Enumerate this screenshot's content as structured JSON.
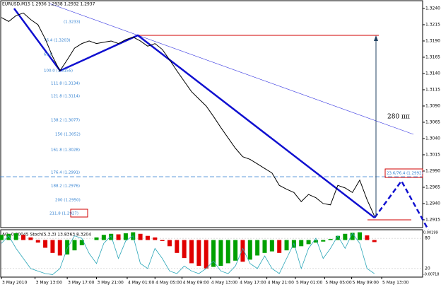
{
  "chart_data": [
    {
      "type": "line",
      "title": "EURUSD,M15  1.2936 1.2938 1.2932 1.2937",
      "color": "#000000",
      "xlim": [
        0,
        57.6
      ],
      "xticks": [
        {
          "value": 0,
          "label": "3 May 2010"
        },
        {
          "value": 4.6,
          "label": "3 May 13:00"
        },
        {
          "value": 9,
          "label": "3 May 17:00"
        },
        {
          "value": 13,
          "label": "3 May 21:00"
        },
        {
          "value": 17.2,
          "label": "4 May 01:00"
        },
        {
          "value": 21,
          "label": "4 May 05:00"
        },
        {
          "value": 24.7,
          "label": "4 May 09:00"
        },
        {
          "value": 28.6,
          "label": "4 May 13:00"
        },
        {
          "value": 32.5,
          "label": "4 May 17:00"
        },
        {
          "value": 36.3,
          "label": "4 May 21:00"
        },
        {
          "value": 40.2,
          "label": "5 May 01:00"
        },
        {
          "value": 44.2,
          "label": "5 May 05:00"
        },
        {
          "value": 47.9,
          "label": "5 May 09:00"
        },
        {
          "value": 52,
          "label": "5 May 13:00"
        }
      ],
      "ylim": [
        1.2903,
        1.3253
      ],
      "yticks": [
        1.2915,
        {
          "value": 1.294,
          "label": "1.2940"
        },
        1.2965,
        {
          "value": 1.299,
          "label": "1.2990"
        },
        1.3015,
        {
          "value": 1.304,
          "label": "1.3040"
        },
        1.3065,
        {
          "value": 1.309,
          "label": "1.3090"
        },
        1.3115,
        {
          "value": 1.314,
          "label": "1.3140"
        },
        1.3165,
        {
          "value": 1.319,
          "label": "1.3190"
        },
        1.3215,
        {
          "value": 1.324,
          "label": "1.3240"
        }
      ],
      "values": [
        1.3226,
        1.322,
        1.3229,
        1.3233,
        1.3223,
        1.3215,
        1.3193,
        1.3166,
        1.3144,
        1.3161,
        1.3179,
        1.3186,
        1.319,
        1.3186,
        1.3188,
        1.319,
        1.3186,
        1.3192,
        1.3196,
        1.319,
        1.3182,
        1.3186,
        1.3177,
        1.3161,
        1.3144,
        1.3128,
        1.3112,
        1.3101,
        1.309,
        1.3074,
        1.3057,
        1.3041,
        1.3025,
        1.3012,
        1.3008,
        1.3001,
        1.2994,
        1.2987,
        1.2968,
        1.2962,
        1.2957,
        1.2943,
        1.2954,
        1.2949,
        1.294,
        1.2938,
        1.2968,
        1.2964,
        1.2957,
        1.2976,
        1.2946,
        1.2921
      ],
      "annotations": [
        "(1.3233)",
        "76.4 (1.3203)",
        "61.8",
        "100.0 (1.3155)",
        "111.8 (1.3134)",
        "121.8 (1.3114)",
        "138.2 (1.3077)",
        "150 (1.3052)",
        "161.8 (1.3028)",
        "176.4 (1.2991)",
        "188.2 (1.2976)",
        "200 (1.2950)",
        "211.8 (1.2927)",
        "23.6/76.4 (1.2992)",
        "280 пп"
      ]
    },
    {
      "type": "ao",
      "title": "AO -0.00045  Stoch(5,3,3) 13.8363 8.3204",
      "up_color": "#00a000",
      "down_color": "#e00000",
      "stoch_color": "#2aa6b8",
      "ylim": [
        -0.00718,
        0.00199
      ],
      "yticks": [
        -0.00718,
        0.00199
      ],
      "y2lim": [
        3,
        97
      ],
      "y2ticks": [
        20,
        80
      ],
      "ao_values": [
        0.001,
        0.0012,
        0.0013,
        0.001,
        0.0005,
        -0.0005,
        -0.0015,
        -0.0025,
        -0.003,
        -0.0028,
        -0.002,
        -0.001,
        0,
        0.0005,
        0.001,
        0.0012,
        0.0011,
        0.0013,
        0.0015,
        0.0012,
        0.0008,
        0.0005,
        -0.0002,
        -0.0012,
        -0.0025,
        -0.0035,
        -0.0045,
        -0.005,
        -0.0055,
        -0.0052,
        -0.005,
        -0.0045,
        -0.004,
        -0.0042,
        -0.0038,
        -0.003,
        -0.0025,
        -0.0022,
        -0.0025,
        -0.002,
        -0.0015,
        -0.0012,
        -0.0008,
        -0.0005,
        -0.0003,
        0.0002,
        0.0008,
        0.0012,
        0.0014,
        0.0015,
        0.0009,
        -0.0004
      ],
      "stoch_values": [
        70,
        85,
        60,
        40,
        20,
        15,
        10,
        8,
        20,
        60,
        85,
        80,
        50,
        30,
        70,
        85,
        40,
        75,
        85,
        30,
        20,
        60,
        40,
        15,
        10,
        25,
        15,
        10,
        20,
        35,
        15,
        10,
        25,
        60,
        30,
        20,
        45,
        20,
        10,
        40,
        70,
        20,
        60,
        80,
        40,
        60,
        85,
        60,
        90,
        70,
        20,
        10
      ]
    }
  ]
}
